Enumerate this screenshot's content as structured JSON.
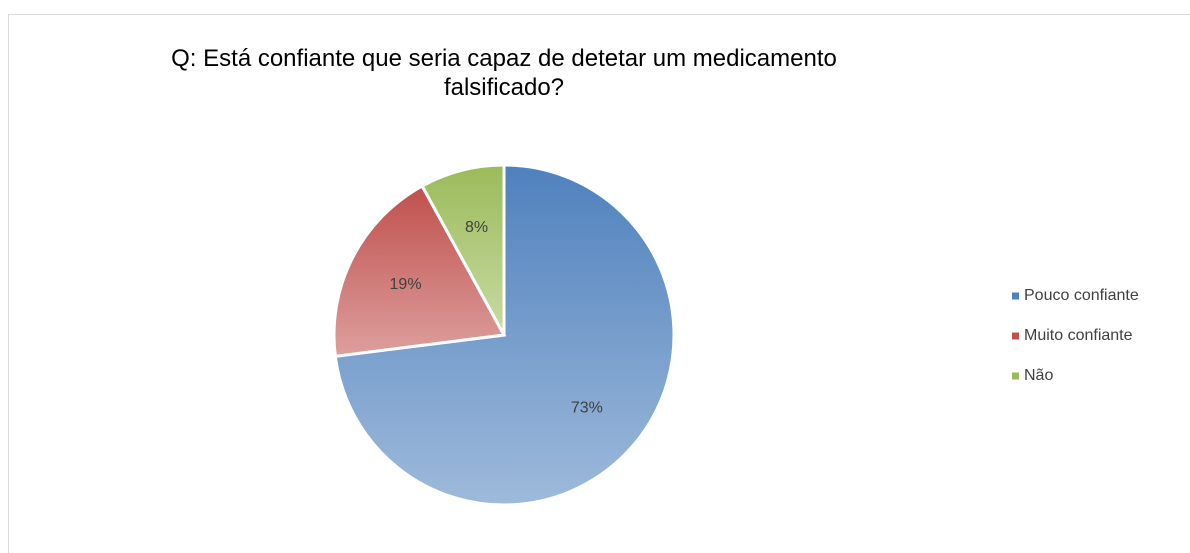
{
  "chart_data": {
    "type": "pie",
    "title": "Q: Está confiante que seria capaz de detetar um medicamento falsificado?",
    "categories": [
      "Pouco confiante",
      "Muito confiante",
      "Não"
    ],
    "values": [
      73,
      19,
      8
    ],
    "value_labels": [
      "73%",
      "19%",
      "8%"
    ],
    "colors": [
      "#4f81bd",
      "#c0504d",
      "#9bbb59"
    ],
    "legend": "right"
  }
}
